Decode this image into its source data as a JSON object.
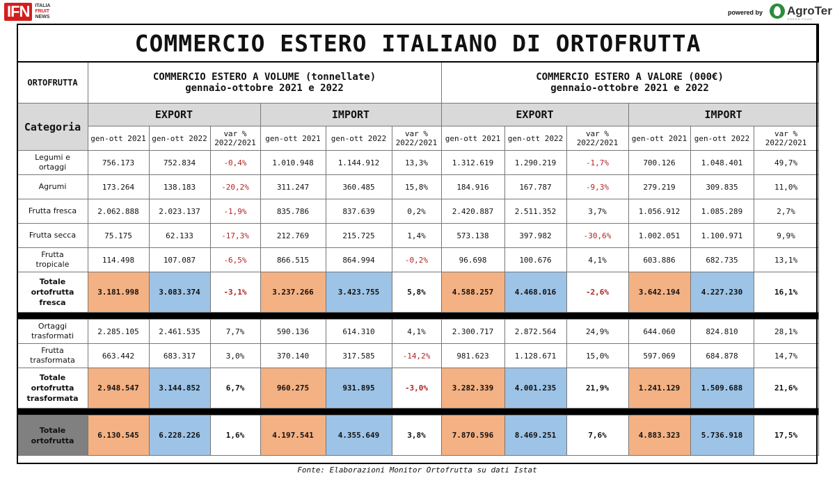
{
  "header": {
    "logo_text": "IFN",
    "logo_sub": [
      "ITALIA",
      "FRUIT",
      "NEWS"
    ],
    "powered_by": "powered by",
    "brand": "AgroTer",
    "brand_tag": "GREEN FOOD"
  },
  "table": {
    "title": "COMMERCIO ESTERO ITALIANO DI ORTOFRUTTA",
    "left_header": "ORTOFRUTTA",
    "volume_header_line1": "COMMERCIO ESTERO A VOLUME (tonnellate)",
    "volume_header_line2": "gennaio-ottobre 2021 e 2022",
    "value_header_line1": "COMMERCIO ESTERO A VALORE (000€)",
    "value_header_line2": "gennaio-ottobre 2021 e 2022",
    "category_label": "Categoria",
    "groups": [
      "EXPORT",
      "IMPORT",
      "EXPORT",
      "IMPORT"
    ],
    "col_2021": "gen-ott 2021",
    "col_2022": "gen-ott 2022",
    "col_var_line1": "var %",
    "col_var_line2": "2022/2021",
    "rows": [
      {
        "label": [
          "Legumi e",
          "ortaggi"
        ],
        "values": [
          "756.173",
          "752.834",
          "-0,4%",
          "1.010.948",
          "1.144.912",
          "13,3%",
          "1.312.619",
          "1.290.219",
          "-1,7%",
          "700.126",
          "1.048.401",
          "49,7%"
        ]
      },
      {
        "label": [
          "Agrumi"
        ],
        "values": [
          "173.264",
          "138.183",
          "-20,2%",
          "311.247",
          "360.485",
          "15,8%",
          "184.916",
          "167.787",
          "-9,3%",
          "279.219",
          "309.835",
          "11,0%"
        ]
      },
      {
        "label": [
          "Frutta fresca"
        ],
        "values": [
          "2.062.888",
          "2.023.137",
          "-1,9%",
          "835.786",
          "837.639",
          "0,2%",
          "2.420.887",
          "2.511.352",
          "3,7%",
          "1.056.912",
          "1.085.289",
          "2,7%"
        ]
      },
      {
        "label": [
          "Frutta secca"
        ],
        "values": [
          "75.175",
          "62.133",
          "-17,3%",
          "212.769",
          "215.725",
          "1,4%",
          "573.138",
          "397.982",
          "-30,6%",
          "1.002.051",
          "1.100.971",
          "9,9%"
        ]
      },
      {
        "label": [
          "Frutta",
          "tropicale"
        ],
        "values": [
          "114.498",
          "107.087",
          "-6,5%",
          "866.515",
          "864.994",
          "-0,2%",
          "96.698",
          "100.676",
          "4,1%",
          "603.886",
          "682.735",
          "13,1%"
        ]
      }
    ],
    "total_fresca": {
      "label": [
        "Totale",
        "ortofrutta",
        "fresca"
      ],
      "values": [
        "3.181.998",
        "3.083.374",
        "-3,1%",
        "3.237.266",
        "3.423.755",
        "5,8%",
        "4.588.257",
        "4.468.016",
        "-2,6%",
        "3.642.194",
        "4.227.230",
        "16,1%"
      ]
    },
    "rows_trasf": [
      {
        "label": [
          "Ortaggi",
          "trasformati"
        ],
        "values": [
          "2.285.105",
          "2.461.535",
          "7,7%",
          "590.136",
          "614.310",
          "4,1%",
          "2.300.717",
          "2.872.564",
          "24,9%",
          "644.060",
          "824.810",
          "28,1%"
        ]
      },
      {
        "label": [
          "Frutta",
          "trasformata"
        ],
        "values": [
          "663.442",
          "683.317",
          "3,0%",
          "370.140",
          "317.585",
          "-14,2%",
          "981.623",
          "1.128.671",
          "15,0%",
          "597.069",
          "684.878",
          "14,7%"
        ]
      }
    ],
    "total_trasf": {
      "label": [
        "Totale",
        "ortofrutta",
        "trasformata"
      ],
      "values": [
        "2.948.547",
        "3.144.852",
        "6,7%",
        "960.275",
        "931.895",
        "-3,0%",
        "3.282.339",
        "4.001.235",
        "21,9%",
        "1.241.129",
        "1.509.688",
        "21,6%"
      ]
    },
    "total_all": {
      "label": [
        "Totale",
        "ortofrutta"
      ],
      "values": [
        "6.130.545",
        "6.228.226",
        "1,6%",
        "4.197.541",
        "4.355.649",
        "3,8%",
        "7.870.596",
        "8.469.251",
        "7,6%",
        "4.883.323",
        "5.736.918",
        "17,5%"
      ]
    },
    "source": "Fonte: Elaborazioni Monitor Ortofrutta su dati Istat"
  },
  "colors": {
    "highlight_2021": "#f4b183",
    "highlight_2022": "#9dc3e6",
    "negative": "#b22222",
    "header_gray": "#d9d9d9",
    "logo_red": "#d41e1e",
    "brand_green": "#2d8c3c"
  }
}
